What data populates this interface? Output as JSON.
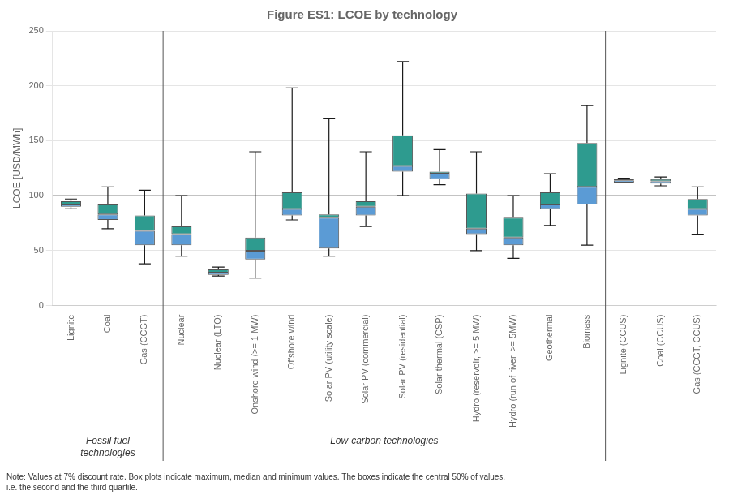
{
  "chart_data": {
    "type": "box",
    "title": "Figure ES1: LCOE by technology",
    "y_label": "LCOE [USD/MWh]",
    "ylim": [
      0,
      250
    ],
    "yticks": [
      0,
      50,
      100,
      150,
      200,
      250
    ],
    "grid": true,
    "categories": [
      "Lignite",
      "Coal",
      "Gas (CCGT)",
      "Nuclear",
      "Nuclear (LTO)",
      "Onshore wind (>= 1 MW)",
      "Offshore wind",
      "Solar PV (utility scale)",
      "Solar PV (commercial)",
      "Solar PV (residential)",
      "Solar thermal (CSP)",
      "Hydro (reservoir, >= 5 MW)",
      "Hydro (run of river, >= 5MW)",
      "Geothermal",
      "Biomass",
      "Lignite (CCUS)",
      "Coal (CCUS)",
      "Gas (CCGT, CCUS)"
    ],
    "box_data": [
      {
        "min": 88,
        "q1": 90,
        "median": 92,
        "q3": 95,
        "max": 97
      },
      {
        "min": 70,
        "q1": 78,
        "median": 83,
        "q3": 92,
        "max": 108
      },
      {
        "min": 38,
        "q1": 55,
        "median": 68,
        "q3": 82,
        "max": 105
      },
      {
        "min": 45,
        "q1": 55,
        "median": 65,
        "q3": 72,
        "max": 100
      },
      {
        "min": 27,
        "q1": 28,
        "median": 30,
        "q3": 33,
        "max": 35
      },
      {
        "min": 25,
        "q1": 42,
        "median": 50,
        "q3": 62,
        "max": 140
      },
      {
        "min": 78,
        "q1": 82,
        "median": 88,
        "q3": 103,
        "max": 198
      },
      {
        "min": 45,
        "q1": 52,
        "median": 80,
        "q3": 83,
        "max": 170
      },
      {
        "min": 72,
        "q1": 82,
        "median": 90,
        "q3": 95,
        "max": 140
      },
      {
        "min": 100,
        "q1": 122,
        "median": 127,
        "q3": 155,
        "max": 222
      },
      {
        "min": 110,
        "q1": 115,
        "median": 120,
        "q3": 122,
        "max": 142
      },
      {
        "min": 50,
        "q1": 65,
        "median": 70,
        "q3": 102,
        "max": 140
      },
      {
        "min": 43,
        "q1": 55,
        "median": 62,
        "q3": 80,
        "max": 100
      },
      {
        "min": 73,
        "q1": 88,
        "median": 92,
        "q3": 103,
        "max": 120
      },
      {
        "min": 55,
        "q1": 92,
        "median": 108,
        "q3": 148,
        "max": 182
      },
      {
        "min": 112,
        "q1": 112,
        "median": 114,
        "q3": 115,
        "max": 116
      },
      {
        "min": 109,
        "q1": 111,
        "median": 113,
        "q3": 115,
        "max": 117
      },
      {
        "min": 65,
        "q1": 82,
        "median": 88,
        "q3": 97,
        "max": 108
      }
    ],
    "box_color_lower": "#5b9bd5",
    "box_color_upper": "#2e9b8f",
    "reference_line": {
      "value": 100,
      "color": "#888888"
    },
    "groups": [
      {
        "label": "Fossil fuel\ntechnologies",
        "start": 0,
        "end": 2
      },
      {
        "label": "Low-carbon technologies",
        "start": 3,
        "end": 14
      }
    ],
    "note": "Note: Values at 7% discount rate. Box plots indicate maximum, median and minimum values. The boxes indicate the central 50% of values,\ni.e. the second and the third quartile."
  }
}
